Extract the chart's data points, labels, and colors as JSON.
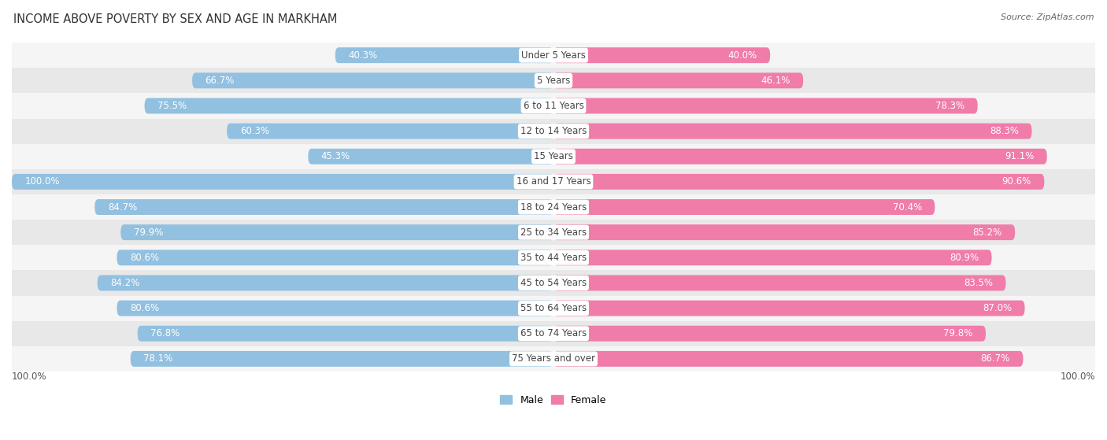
{
  "title": "INCOME ABOVE POVERTY BY SEX AND AGE IN MARKHAM",
  "source": "Source: ZipAtlas.com",
  "categories": [
    "Under 5 Years",
    "5 Years",
    "6 to 11 Years",
    "12 to 14 Years",
    "15 Years",
    "16 and 17 Years",
    "18 to 24 Years",
    "25 to 34 Years",
    "35 to 44 Years",
    "45 to 54 Years",
    "55 to 64 Years",
    "65 to 74 Years",
    "75 Years and over"
  ],
  "male_values": [
    40.3,
    66.7,
    75.5,
    60.3,
    45.3,
    100.0,
    84.7,
    79.9,
    80.6,
    84.2,
    80.6,
    76.8,
    78.1
  ],
  "female_values": [
    40.0,
    46.1,
    78.3,
    88.3,
    91.1,
    90.6,
    70.4,
    85.2,
    80.9,
    83.5,
    87.0,
    79.8,
    86.7
  ],
  "male_color": "#92c0e0",
  "female_color": "#f07caa",
  "male_label": "Male",
  "female_label": "Female",
  "row_bg_odd": "#e8e8e8",
  "row_bg_even": "#f5f5f5",
  "bar_height": 0.62,
  "figsize": [
    14.06,
    5.59
  ],
  "dpi": 100,
  "title_fontsize": 10.5,
  "value_fontsize": 8.5,
  "source_fontsize": 8,
  "category_fontsize": 8.5,
  "legend_fontsize": 9,
  "footer_label": "100.0%"
}
